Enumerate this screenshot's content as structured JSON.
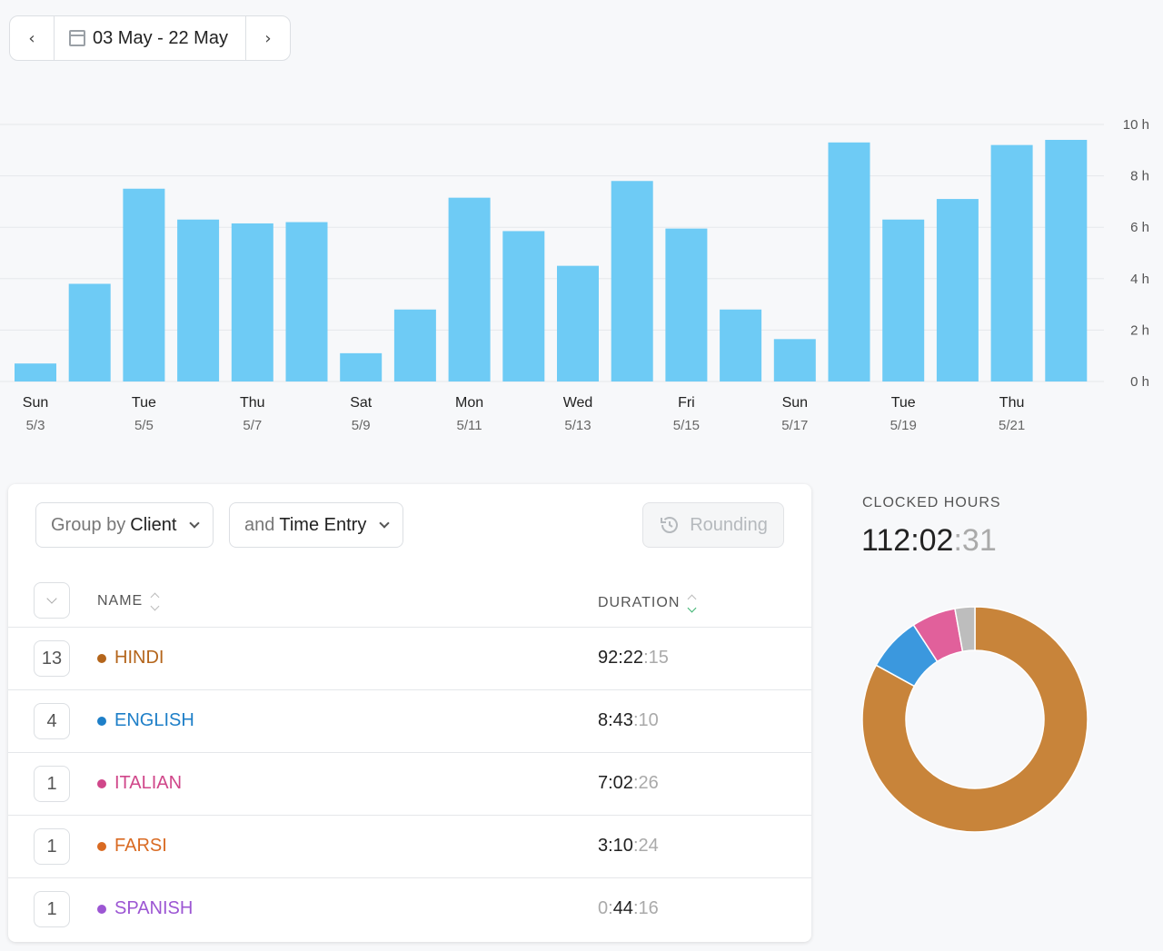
{
  "date_nav": {
    "prev_icon": "chevron-left-icon",
    "next_icon": "chevron-right-icon",
    "range_label": "03 May - 22 May"
  },
  "chart_data": {
    "type": "bar",
    "categories": [
      "5/3",
      "5/4",
      "5/5",
      "5/6",
      "5/7",
      "5/8",
      "5/9",
      "5/10",
      "5/11",
      "5/12",
      "5/13",
      "5/14",
      "5/15",
      "5/16",
      "5/17",
      "5/18",
      "5/19",
      "5/20",
      "5/21",
      "5/22"
    ],
    "values": [
      0.7,
      3.8,
      7.5,
      6.3,
      6.15,
      6.2,
      1.1,
      2.8,
      7.15,
      5.85,
      4.5,
      7.8,
      5.95,
      2.8,
      1.65,
      9.3,
      6.3,
      7.1,
      9.2,
      9.4
    ],
    "x_labels": [
      {
        "day": "Sun",
        "date": "5/3"
      },
      {
        "day": "Tue",
        "date": "5/5"
      },
      {
        "day": "Thu",
        "date": "5/7"
      },
      {
        "day": "Sat",
        "date": "5/9"
      },
      {
        "day": "Mon",
        "date": "5/11"
      },
      {
        "day": "Wed",
        "date": "5/13"
      },
      {
        "day": "Fri",
        "date": "5/15"
      },
      {
        "day": "Sun",
        "date": "5/17"
      },
      {
        "day": "Tue",
        "date": "5/19"
      },
      {
        "day": "Thu",
        "date": "5/21"
      }
    ],
    "y_ticks": [
      "0 h",
      "2 h",
      "4 h",
      "6 h",
      "8 h",
      "10 h"
    ],
    "ylim": [
      0,
      10
    ],
    "grid": true,
    "bar_color": "#6ecbf5"
  },
  "toolbar": {
    "group_prefix": "Group by",
    "group_value": "Client",
    "then_prefix": "and",
    "then_value": "Time Entry",
    "rounding_label": "Rounding"
  },
  "table": {
    "col_name": "NAME",
    "col_duration": "DURATION",
    "rows": [
      {
        "count": "13",
        "name": "HINDI",
        "color": "#b4651b",
        "dur_main": "92:22",
        "dur_sec": ":15"
      },
      {
        "count": "4",
        "name": "ENGLISH",
        "color": "#1e7fc8",
        "dur_main": "8:43",
        "dur_sec": ":10"
      },
      {
        "count": "1",
        "name": "ITALIAN",
        "color": "#d0478a",
        "dur_main": "7:02",
        "dur_sec": ":26"
      },
      {
        "count": "1",
        "name": "FARSI",
        "color": "#d96a22",
        "dur_main": "3:10",
        "dur_sec": ":24"
      },
      {
        "count": "1",
        "name": "SPANISH",
        "color": "#9c56d3",
        "dur_dim": "0:",
        "dur_main": "44",
        "dur_sec": ":16"
      }
    ]
  },
  "summary": {
    "label": "CLOCKED HOURS",
    "main": "112:02",
    "sec": ":31"
  },
  "donut": {
    "slices": [
      {
        "name": "HINDI",
        "value": 92.37,
        "color": "#c8843a"
      },
      {
        "name": "ENGLISH",
        "value": 8.72,
        "color": "#3b98de"
      },
      {
        "name": "ITALIAN",
        "value": 7.04,
        "color": "#e1609b"
      },
      {
        "name": "FARSI",
        "value": 3.17,
        "color": "#bdbdbd"
      }
    ]
  }
}
